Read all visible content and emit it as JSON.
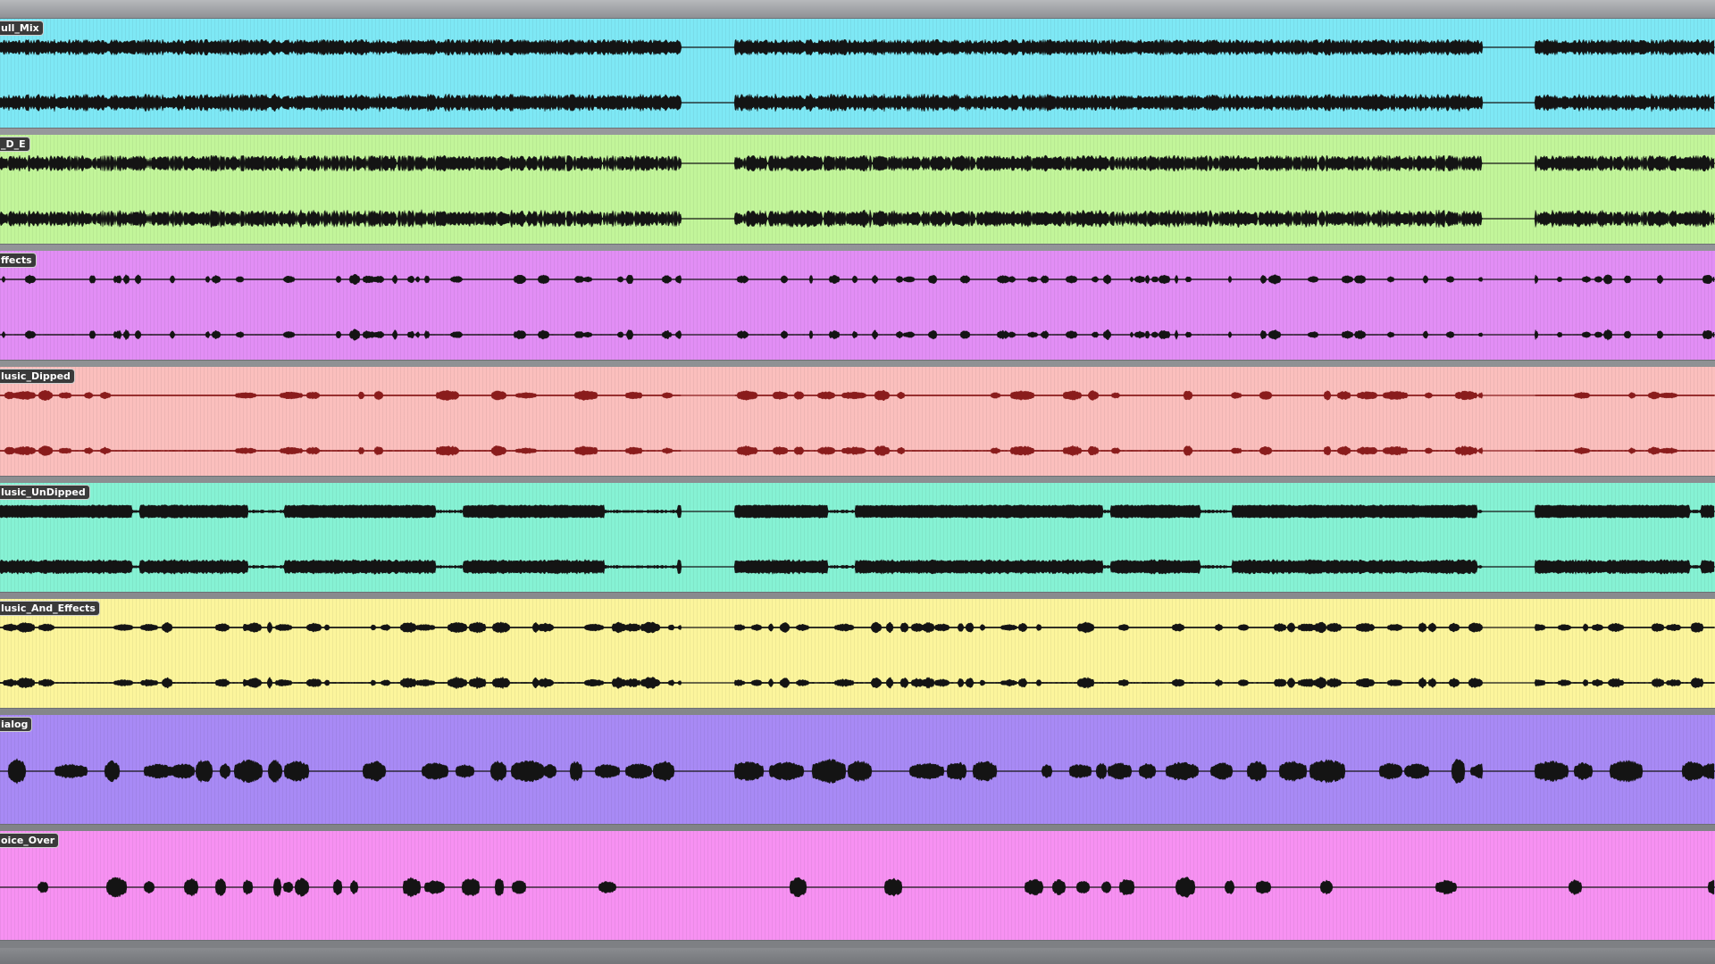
{
  "session": {
    "tracks": [
      {
        "name": "ull_Mix",
        "color": "#7ee8f5",
        "wave_color": "#141414",
        "profile": "dense",
        "seed": 11
      },
      {
        "name": "_D_E",
        "color": "#c2f59a",
        "wave_color": "#141414",
        "profile": "dense-mid",
        "seed": 23
      },
      {
        "name": "ffects",
        "color": "#e28ef5",
        "wave_color": "#141414",
        "profile": "sparse",
        "seed": 37
      },
      {
        "name": "lusic_Dipped",
        "color": "#fbbfbd",
        "wave_color": "#8a1c1c",
        "profile": "music-dipped",
        "seed": 41
      },
      {
        "name": "lusic_UnDipped",
        "color": "#86f2d4",
        "wave_color": "#141414",
        "profile": "blocks",
        "seed": 53
      },
      {
        "name": "lusic_And_Effects",
        "color": "#fcf59c",
        "wave_color": "#141414",
        "profile": "mixed",
        "seed": 67
      },
      {
        "name": "ialog",
        "color": "#a88af5",
        "wave_color": "#141414",
        "profile": "dialog",
        "seed": 71
      },
      {
        "name": "oice_Over",
        "color": "#f791f2",
        "wave_color": "#141414",
        "profile": "voice",
        "seed": 83
      }
    ]
  }
}
